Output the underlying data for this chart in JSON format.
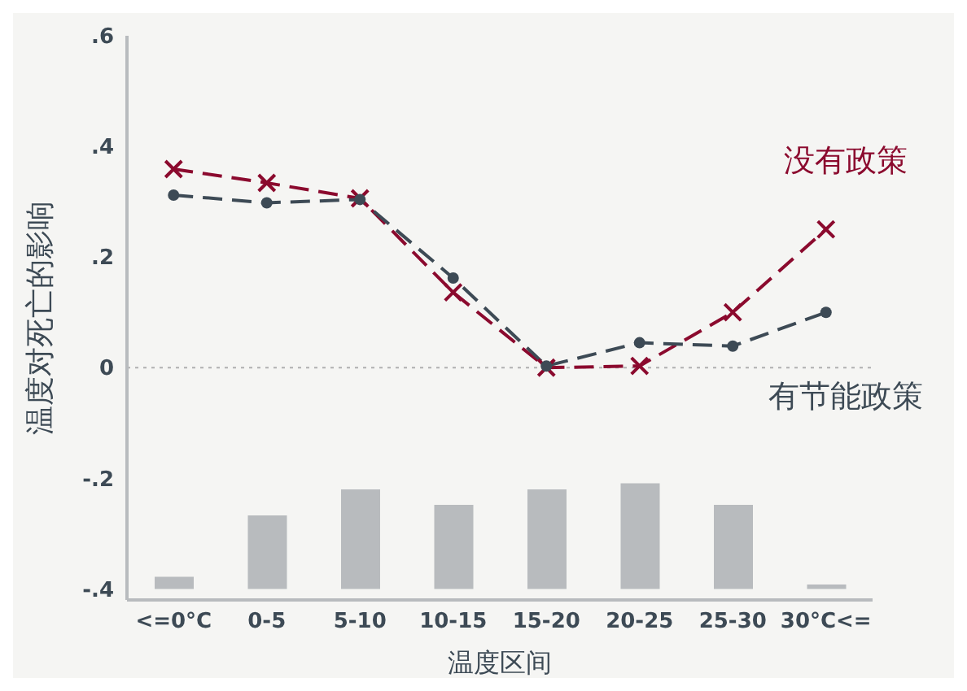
{
  "chart_data": {
    "type": "line",
    "xlabel": "温度区间",
    "ylabel": "温度对死亡的影响",
    "categories": [
      "<=0°C",
      "0-5",
      "5-10",
      "10-15",
      "15-20",
      "20-25",
      "25-30",
      "30°C<="
    ],
    "series": [
      {
        "type": "bar",
        "color": "#b8bbbe",
        "base": [
          -0.4,
          -0.4,
          -0.4,
          -0.4,
          -0.4,
          -0.4,
          -0.4,
          -0.4
        ],
        "values": [
          0.022,
          0.133,
          0.18,
          0.152,
          0.18,
          0.191,
          0.152,
          0.008
        ]
      },
      {
        "name": "没有政策",
        "color": "#8b0a2e",
        "marker": "cross",
        "line_style": "dashed",
        "values": [
          0.359,
          0.334,
          0.306,
          0.136,
          0,
          0.003,
          0.1,
          0.25
        ]
      },
      {
        "name": "有节能政策",
        "color": "#3d4a55",
        "marker": "circle",
        "line_style": "dashed",
        "values": [
          0.312,
          0.298,
          0.304,
          0.162,
          0.003,
          0.045,
          0.039,
          0.1
        ]
      }
    ],
    "ylim": [
      -0.42,
      0.6
    ],
    "yticks": [
      {
        "value": 0.6,
        "label": ".6"
      },
      {
        "value": 0.4,
        "label": ".4"
      },
      {
        "value": 0.2,
        "label": ".2"
      },
      {
        "value": 0,
        "label": "0"
      },
      {
        "value": -0.2,
        "label": "-.2"
      },
      {
        "value": -0.4,
        "label": "-.4"
      }
    ],
    "ref_lines": [
      {
        "axis": "y",
        "value": 0,
        "color": "#b0b0b0",
        "line_style": "dotted"
      }
    ],
    "grid": false,
    "legend": false
  }
}
